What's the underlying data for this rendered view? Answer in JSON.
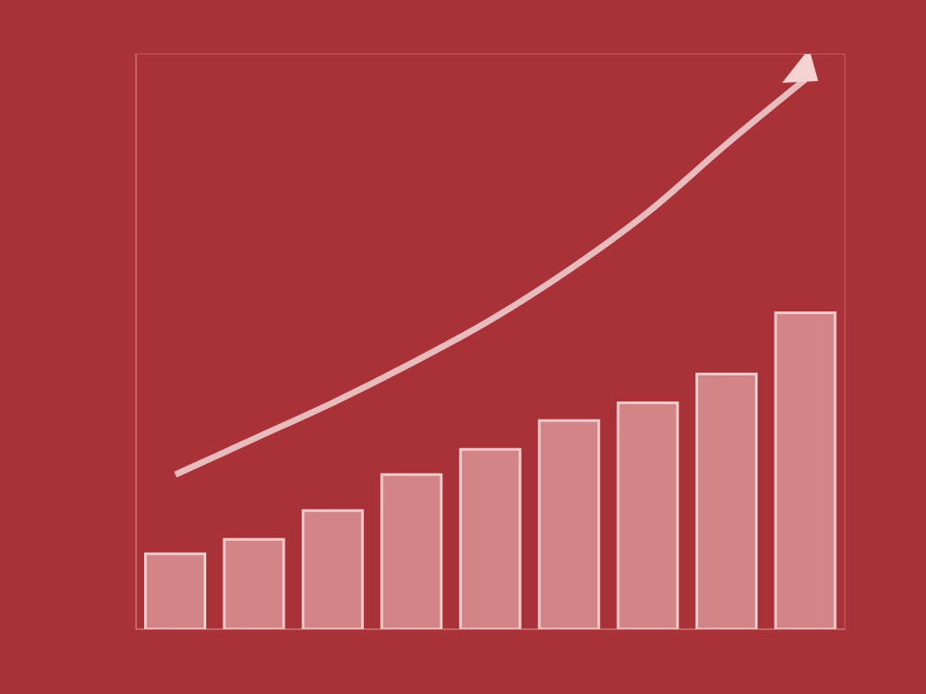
{
  "chart_data": {
    "type": "bar",
    "categories": [
      null,
      null,
      null,
      null,
      null,
      null,
      null,
      null,
      null
    ],
    "series": [
      {
        "type": "bar",
        "color": "#f4c9c9",
        "values": [
          21,
          25,
          33,
          43,
          50,
          58,
          63,
          71,
          88
        ]
      },
      {
        "type": "line",
        "color": "#f6d3d3",
        "marker": "arrow",
        "values": [
          43,
          53,
          63,
          74,
          86,
          100,
          116,
          135,
          153
        ]
      }
    ],
    "ylim": [
      0,
      160
    ],
    "yticks": [
      0,
      20,
      40,
      60,
      80,
      100,
      120,
      140,
      160
    ],
    "grid": true,
    "tick_labels": false
  }
}
